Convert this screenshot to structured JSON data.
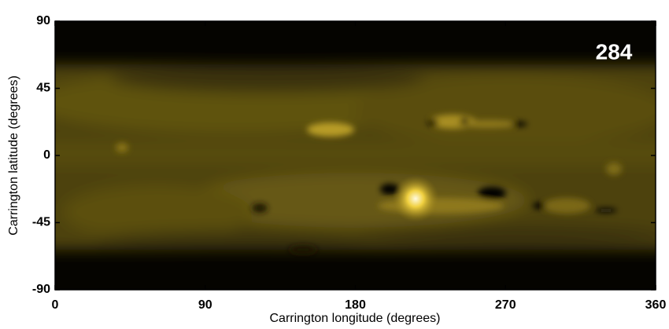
{
  "chart_data": {
    "type": "image",
    "x_label": "Carrington longitude (degrees)",
    "y_label": "Carrington latitude (degrees)",
    "annotation": "284",
    "xlim": [
      0,
      360
    ],
    "xticks": [
      0,
      90,
      180,
      270,
      360
    ],
    "ylim": [
      -90,
      90
    ],
    "yticks": [
      -90,
      -45,
      0,
      45,
      90
    ]
  }
}
